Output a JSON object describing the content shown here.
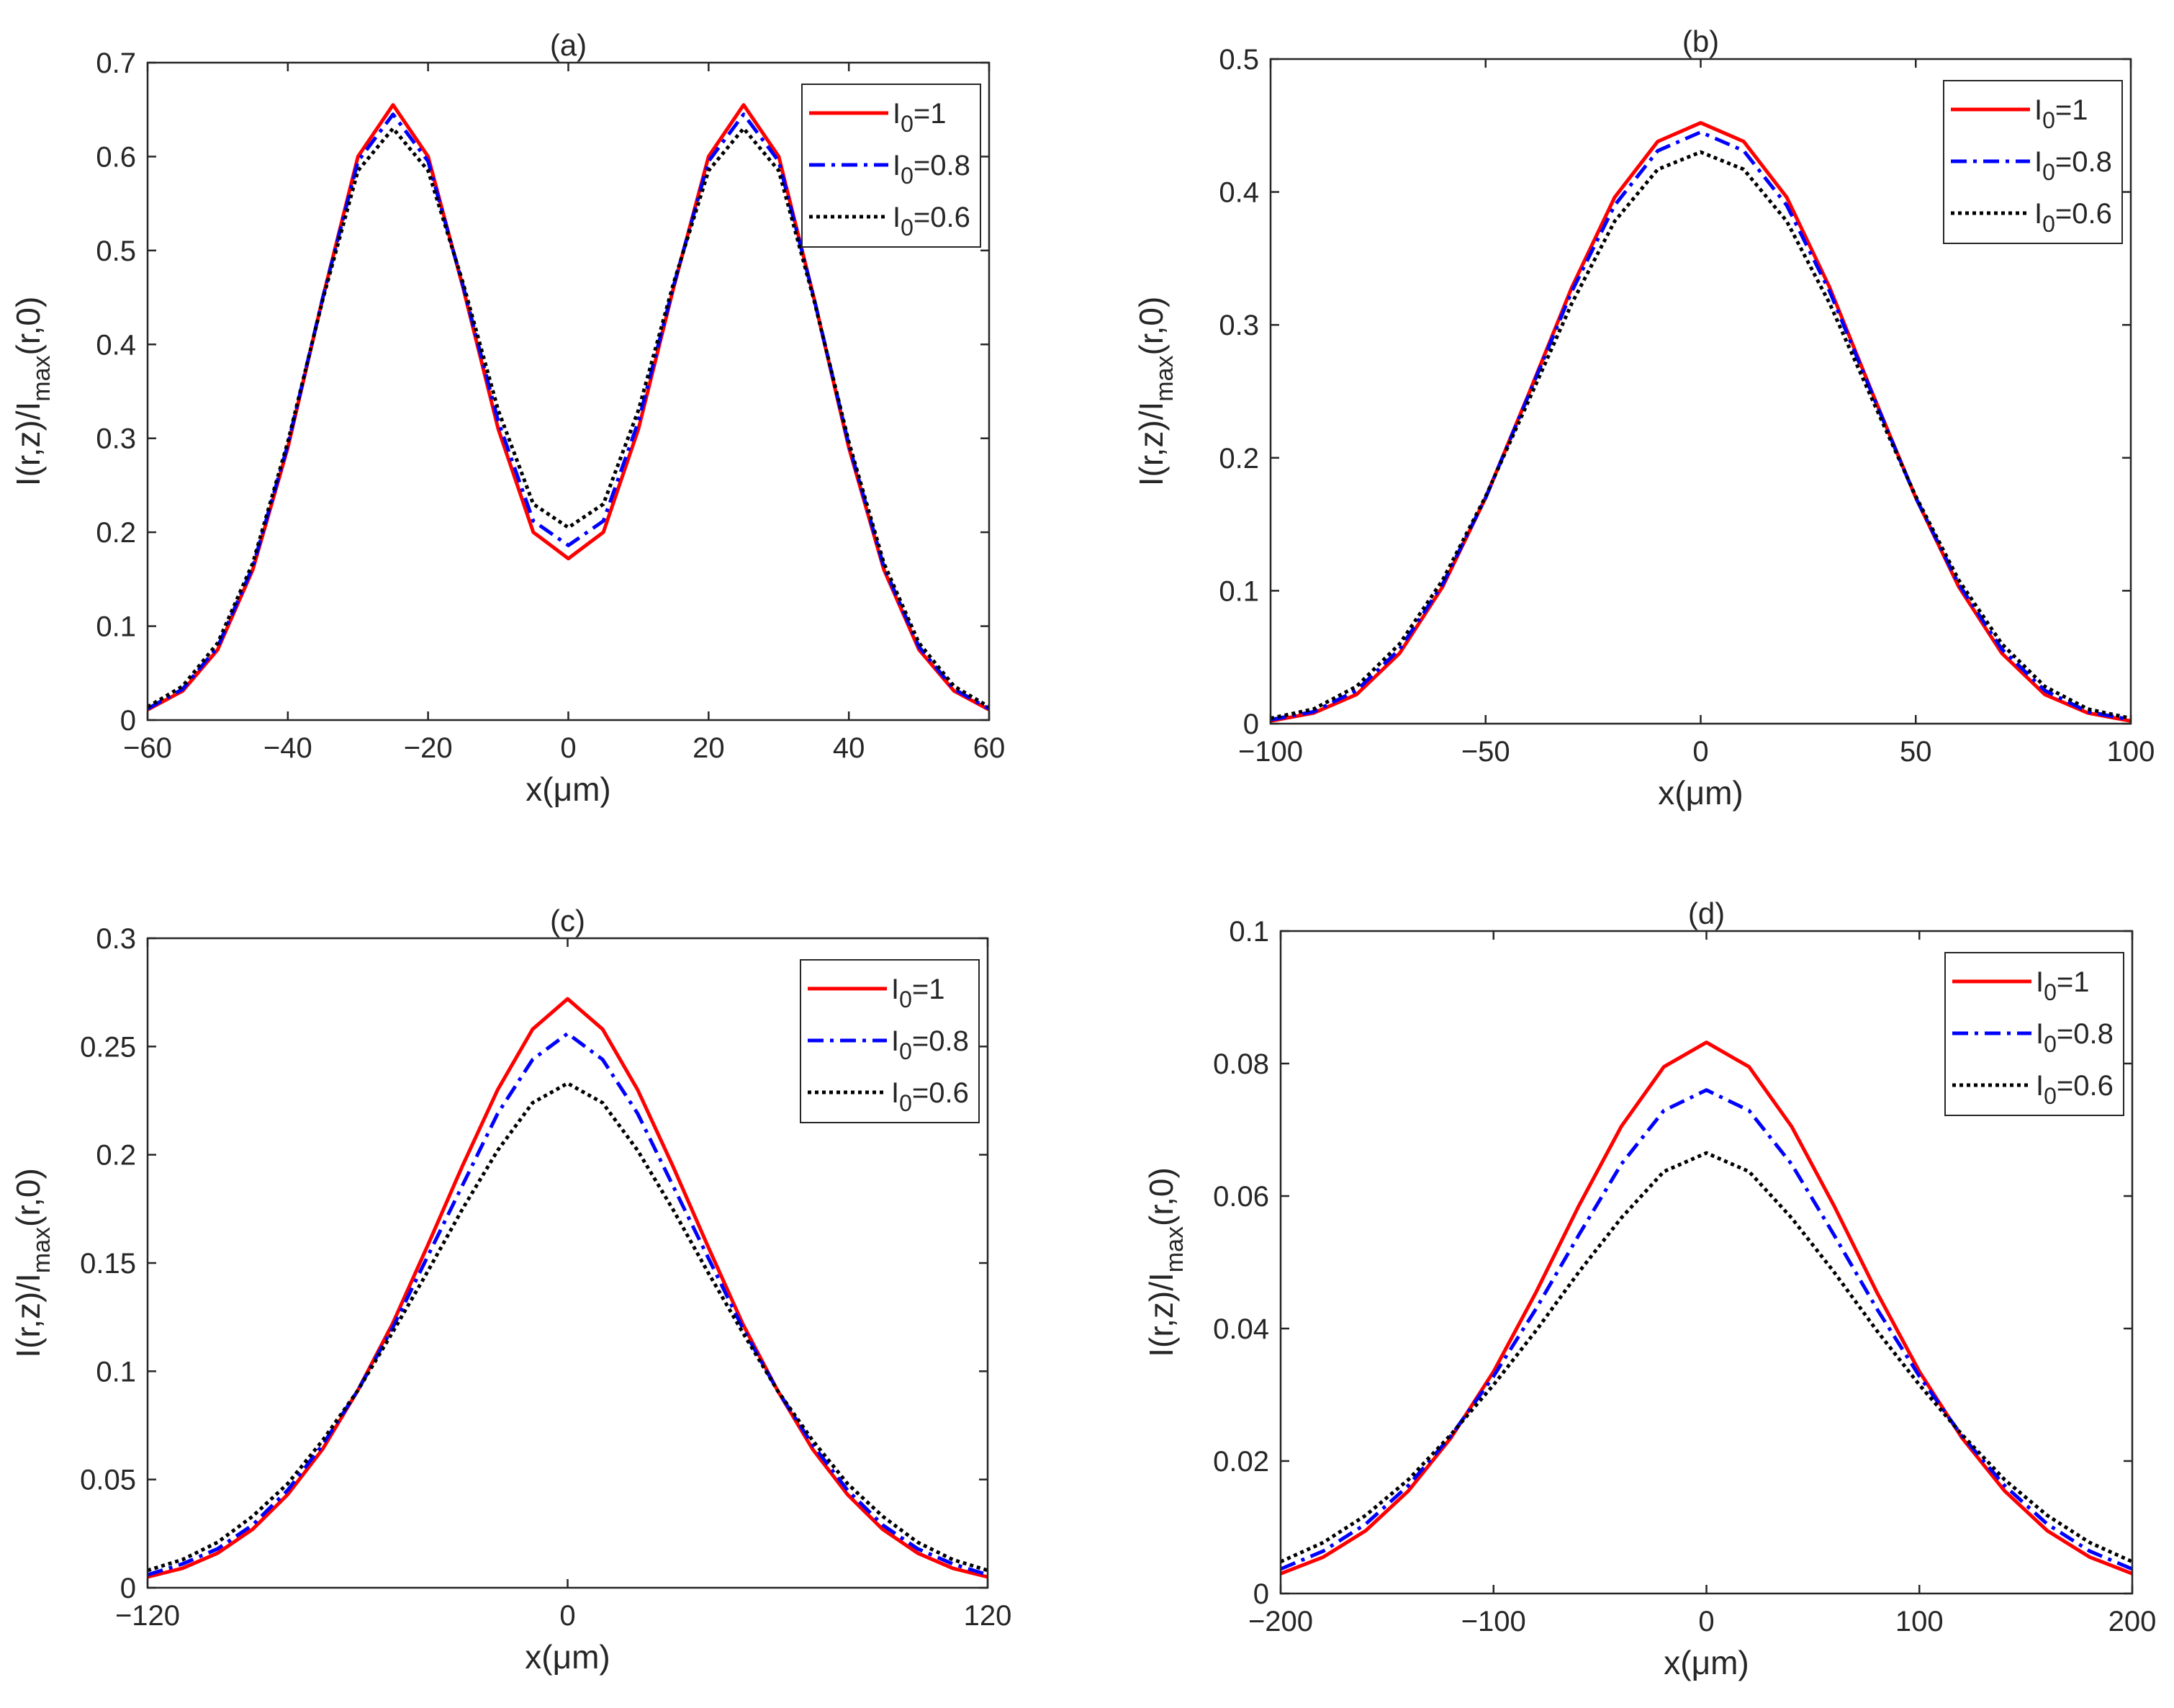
{
  "chart_data": [
    {
      "id": "a",
      "type": "line",
      "title": "(a)",
      "xlabel": "x(μm)",
      "ylabel": "I(r,z)/Imax(r,0)",
      "xlim": [
        -60,
        60
      ],
      "ylim": [
        0,
        0.7
      ],
      "xticks": [
        -60,
        -40,
        -20,
        0,
        20,
        40,
        60
      ],
      "xtick_labels": [
        "−60",
        "−40",
        "−20",
        "0",
        "20",
        "40",
        "60"
      ],
      "yticks": [
        0,
        0.1,
        0.2,
        0.3,
        0.4,
        0.5,
        0.6,
        0.7
      ],
      "ytick_labels": [
        "0",
        "0.1",
        "0.2",
        "0.3",
        "0.4",
        "0.5",
        "0.6",
        "0.7"
      ],
      "legend": "top-right",
      "series": [
        {
          "name": "I0=1",
          "color": "#ff0000",
          "style": "solid",
          "x": [
            -60,
            -55,
            -50,
            -45,
            -40,
            -35,
            -30,
            -25,
            -20,
            -15,
            -10,
            -5,
            0,
            5,
            10,
            15,
            20,
            25,
            30,
            35,
            40,
            45,
            50,
            55,
            60
          ],
          "values": [
            0.011,
            0.031,
            0.075,
            0.16,
            0.29,
            0.45,
            0.6,
            0.655,
            0.6,
            0.46,
            0.31,
            0.2,
            0.172,
            0.2,
            0.31,
            0.46,
            0.6,
            0.655,
            0.6,
            0.45,
            0.29,
            0.16,
            0.075,
            0.031,
            0.011
          ]
        },
        {
          "name": "I0=0.8",
          "color": "#0000ff",
          "style": "dashdot",
          "x": [
            -60,
            -55,
            -50,
            -45,
            -40,
            -35,
            -30,
            -25,
            -20,
            -15,
            -10,
            -5,
            0,
            5,
            10,
            15,
            20,
            25,
            30,
            35,
            40,
            45,
            50,
            55,
            60
          ],
          "values": [
            0.012,
            0.033,
            0.078,
            0.163,
            0.293,
            0.45,
            0.595,
            0.645,
            0.595,
            0.462,
            0.318,
            0.212,
            0.186,
            0.212,
            0.318,
            0.462,
            0.595,
            0.645,
            0.595,
            0.45,
            0.293,
            0.163,
            0.078,
            0.033,
            0.012
          ]
        },
        {
          "name": "I0=0.6",
          "color": "#000000",
          "style": "dotted",
          "x": [
            -60,
            -55,
            -50,
            -45,
            -40,
            -35,
            -30,
            -25,
            -20,
            -15,
            -10,
            -5,
            0,
            5,
            10,
            15,
            20,
            25,
            30,
            35,
            40,
            45,
            50,
            55,
            60
          ],
          "values": [
            0.014,
            0.036,
            0.082,
            0.167,
            0.296,
            0.448,
            0.585,
            0.63,
            0.585,
            0.465,
            0.33,
            0.23,
            0.205,
            0.23,
            0.33,
            0.465,
            0.585,
            0.63,
            0.585,
            0.448,
            0.296,
            0.167,
            0.082,
            0.036,
            0.014
          ]
        }
      ]
    },
    {
      "id": "b",
      "type": "line",
      "title": "(b)",
      "xlabel": "x(μm)",
      "ylabel": "I(r,z)/Imax(r,0)",
      "xlim": [
        -100,
        100
      ],
      "ylim": [
        0,
        0.5
      ],
      "xticks": [
        -100,
        -50,
        0,
        50,
        100
      ],
      "xtick_labels": [
        "−100",
        "−50",
        "0",
        "50",
        "100"
      ],
      "yticks": [
        0,
        0.1,
        0.2,
        0.3,
        0.4,
        0.5
      ],
      "ytick_labels": [
        "0",
        "0.1",
        "0.2",
        "0.3",
        "0.4",
        "0.5"
      ],
      "legend": "top-right",
      "series": [
        {
          "name": "I0=1",
          "color": "#ff0000",
          "style": "solid",
          "x": [
            -100,
            -90,
            -80,
            -70,
            -60,
            -50,
            -40,
            -30,
            -20,
            -10,
            0,
            10,
            20,
            30,
            40,
            50,
            60,
            70,
            80,
            90,
            100
          ],
          "values": [
            0.002,
            0.008,
            0.022,
            0.053,
            0.103,
            0.17,
            0.248,
            0.328,
            0.396,
            0.438,
            0.452,
            0.438,
            0.396,
            0.328,
            0.248,
            0.17,
            0.103,
            0.053,
            0.022,
            0.008,
            0.002
          ]
        },
        {
          "name": "I0=0.8",
          "color": "#0000ff",
          "style": "dashdot",
          "x": [
            -100,
            -90,
            -80,
            -70,
            -60,
            -50,
            -40,
            -30,
            -20,
            -10,
            0,
            10,
            20,
            30,
            40,
            50,
            60,
            70,
            80,
            90,
            100
          ],
          "values": [
            0.003,
            0.009,
            0.025,
            0.056,
            0.105,
            0.17,
            0.247,
            0.325,
            0.39,
            0.431,
            0.445,
            0.431,
            0.39,
            0.325,
            0.247,
            0.17,
            0.105,
            0.056,
            0.025,
            0.009,
            0.003
          ]
        },
        {
          "name": "I0=0.6",
          "color": "#000000",
          "style": "dotted",
          "x": [
            -100,
            -90,
            -80,
            -70,
            -60,
            -50,
            -40,
            -30,
            -20,
            -10,
            0,
            10,
            20,
            30,
            40,
            50,
            60,
            70,
            80,
            90,
            100
          ],
          "values": [
            0.004,
            0.011,
            0.028,
            0.06,
            0.108,
            0.171,
            0.243,
            0.316,
            0.378,
            0.417,
            0.43,
            0.417,
            0.378,
            0.316,
            0.243,
            0.171,
            0.108,
            0.06,
            0.028,
            0.011,
            0.004
          ]
        }
      ]
    },
    {
      "id": "c",
      "type": "line",
      "title": "(c)",
      "xlabel": "x(μm)",
      "ylabel": "I(r,z)/Imax(r,0)",
      "xlim": [
        -120,
        120
      ],
      "ylim": [
        0,
        0.3
      ],
      "xticks": [
        -120,
        0,
        120
      ],
      "xtick_labels": [
        "−120",
        "0",
        "120"
      ],
      "yticks": [
        0,
        0.05,
        0.1,
        0.15,
        0.2,
        0.25,
        0.3
      ],
      "ytick_labels": [
        "0",
        "0.05",
        "0.1",
        "0.15",
        "0.2",
        "0.25",
        "0.3"
      ],
      "legend": "top-right",
      "series": [
        {
          "name": "I0=1",
          "color": "#ff0000",
          "style": "solid",
          "x": [
            -120,
            -110,
            -100,
            -90,
            -80,
            -70,
            -60,
            -50,
            -40,
            -30,
            -20,
            -10,
            0,
            10,
            20,
            30,
            40,
            50,
            60,
            70,
            80,
            90,
            100,
            110,
            120
          ],
          "values": [
            0.005,
            0.009,
            0.016,
            0.027,
            0.043,
            0.064,
            0.091,
            0.122,
            0.158,
            0.195,
            0.23,
            0.258,
            0.272,
            0.258,
            0.23,
            0.195,
            0.158,
            0.122,
            0.091,
            0.064,
            0.043,
            0.027,
            0.016,
            0.009,
            0.005
          ]
        },
        {
          "name": "I0=0.8",
          "color": "#0000ff",
          "style": "dashdot",
          "x": [
            -120,
            -110,
            -100,
            -90,
            -80,
            -70,
            -60,
            -50,
            -40,
            -30,
            -20,
            -10,
            0,
            10,
            20,
            30,
            40,
            50,
            60,
            70,
            80,
            90,
            100,
            110,
            120
          ],
          "values": [
            0.006,
            0.011,
            0.018,
            0.029,
            0.045,
            0.066,
            0.091,
            0.12,
            0.153,
            0.186,
            0.219,
            0.244,
            0.256,
            0.244,
            0.219,
            0.186,
            0.153,
            0.12,
            0.091,
            0.066,
            0.045,
            0.029,
            0.018,
            0.011,
            0.006
          ]
        },
        {
          "name": "I0=0.6",
          "color": "#000000",
          "style": "dotted",
          "x": [
            -120,
            -110,
            -100,
            -90,
            -80,
            -70,
            -60,
            -50,
            -40,
            -30,
            -20,
            -10,
            0,
            10,
            20,
            30,
            40,
            50,
            60,
            70,
            80,
            90,
            100,
            110,
            120
          ],
          "values": [
            0.008,
            0.013,
            0.021,
            0.033,
            0.048,
            0.068,
            0.091,
            0.118,
            0.146,
            0.175,
            0.202,
            0.224,
            0.233,
            0.224,
            0.202,
            0.175,
            0.146,
            0.118,
            0.091,
            0.068,
            0.048,
            0.033,
            0.021,
            0.013,
            0.008
          ]
        }
      ]
    },
    {
      "id": "d",
      "type": "line",
      "title": "(d)",
      "xlabel": "x(μm)",
      "ylabel": "I(r,z)/Imax(r,0)",
      "xlim": [
        -200,
        200
      ],
      "ylim": [
        0,
        0.1
      ],
      "xticks": [
        -200,
        -100,
        0,
        100,
        200
      ],
      "xtick_labels": [
        "−200",
        "−100",
        "0",
        "100",
        "200"
      ],
      "yticks": [
        0,
        0.02,
        0.04,
        0.06,
        0.08,
        0.1
      ],
      "ytick_labels": [
        "0",
        "0.02",
        "0.04",
        "0.06",
        "0.08",
        "0.1"
      ],
      "legend": "top-right",
      "series": [
        {
          "name": "I0=1",
          "color": "#ff0000",
          "style": "solid",
          "x": [
            -200,
            -180,
            -160,
            -140,
            -120,
            -100,
            -80,
            -60,
            -40,
            -20,
            0,
            20,
            40,
            60,
            80,
            100,
            120,
            140,
            160,
            180,
            200
          ],
          "values": [
            0.003,
            0.0055,
            0.0095,
            0.0155,
            0.0235,
            0.0335,
            0.0455,
            0.0585,
            0.0705,
            0.0795,
            0.0832,
            0.0795,
            0.0705,
            0.0585,
            0.0455,
            0.0335,
            0.0235,
            0.0155,
            0.0095,
            0.0055,
            0.003
          ]
        },
        {
          "name": "I0=0.8",
          "color": "#0000ff",
          "style": "dashdot",
          "x": [
            -200,
            -180,
            -160,
            -140,
            -120,
            -100,
            -80,
            -60,
            -40,
            -20,
            0,
            20,
            40,
            60,
            80,
            100,
            120,
            140,
            160,
            180,
            200
          ],
          "values": [
            0.0037,
            0.0064,
            0.0105,
            0.0163,
            0.0238,
            0.0328,
            0.043,
            0.0541,
            0.0648,
            0.0729,
            0.076,
            0.0729,
            0.0648,
            0.0541,
            0.043,
            0.0328,
            0.0238,
            0.0163,
            0.0105,
            0.0064,
            0.0037
          ]
        },
        {
          "name": "I0=0.6",
          "color": "#000000",
          "style": "dotted",
          "x": [
            -200,
            -180,
            -160,
            -140,
            -120,
            -100,
            -80,
            -60,
            -40,
            -20,
            0,
            20,
            40,
            60,
            80,
            100,
            120,
            140,
            160,
            180,
            200
          ],
          "values": [
            0.0048,
            0.0077,
            0.0118,
            0.0172,
            0.024,
            0.0315,
            0.0397,
            0.0485,
            0.0567,
            0.0637,
            0.0665,
            0.0637,
            0.0567,
            0.0485,
            0.0397,
            0.0315,
            0.024,
            0.0172,
            0.0118,
            0.0077,
            0.0048
          ]
        }
      ]
    }
  ]
}
